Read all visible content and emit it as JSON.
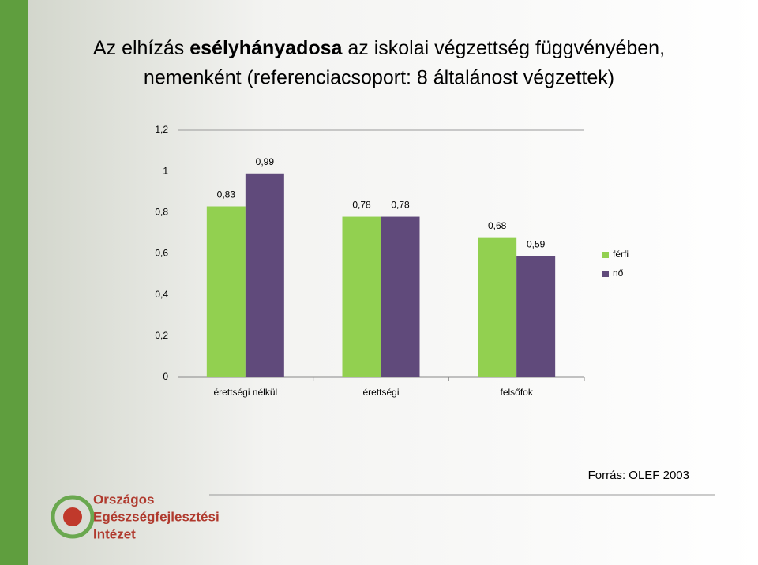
{
  "chart_data": {
    "type": "bar",
    "title": {
      "before": "Az elhízás",
      "bold": "esélyhányadosa",
      "after": "az iskolai végzettség függvényében,",
      "line2": "nemenként (referenciacsoport: 8 általánost végzettek)"
    },
    "categories": [
      "érettségi nélkül",
      "érettségi",
      "felsőfok"
    ],
    "series": [
      {
        "name": "férfi",
        "color": "#92d050",
        "values": [
          0.83,
          0.78,
          0.68
        ],
        "value_labels": [
          "0,83",
          "0,78",
          "0,68"
        ]
      },
      {
        "name": "nő",
        "color": "#604a7b",
        "values": [
          0.99,
          0.78,
          0.59
        ],
        "value_labels": [
          "0,99",
          "0,78",
          "0,59"
        ]
      }
    ],
    "ylim": [
      0,
      1.2
    ],
    "yticks": [
      0,
      {
        "value": 0.2,
        "label": "0,2"
      },
      {
        "value": 0.4,
        "label": "0,4"
      },
      {
        "value": 0.6,
        "label": "0,6"
      },
      {
        "value": 0.8,
        "label": "0,8"
      },
      1,
      {
        "value": 1.2,
        "label": "1,2"
      }
    ],
    "grid": false,
    "legend": "right"
  },
  "source": "Forrás: OLEF 2003",
  "logo": [
    "Országos",
    "Egészségfejlesztési",
    "Intézet"
  ]
}
